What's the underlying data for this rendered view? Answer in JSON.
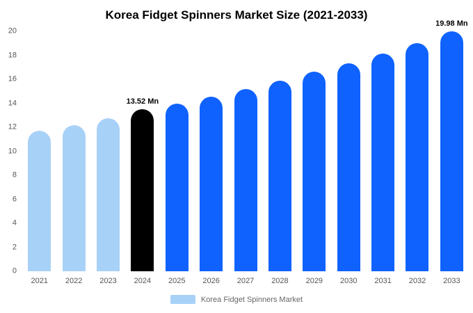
{
  "title": "Korea Fidget Spinners Market Size (2021-2033)",
  "legend": {
    "label": "Korea Fidget Spinners Market",
    "swatch_color": "#a8d1f7"
  },
  "colors": {
    "past": "#a8d1f7",
    "current": "#000000",
    "forecast": "#0f62fe"
  },
  "chart_data": {
    "type": "bar",
    "title": "Korea Fidget Spinners Market Size (2021-2033)",
    "categories": [
      "2021",
      "2022",
      "2023",
      "2024",
      "2025",
      "2026",
      "2027",
      "2028",
      "2029",
      "2030",
      "2031",
      "2032",
      "2033"
    ],
    "values": [
      11.7,
      12.2,
      12.75,
      13.52,
      14.0,
      14.55,
      15.2,
      15.9,
      16.65,
      17.35,
      18.15,
      19.0,
      19.98
    ],
    "bar_colors": [
      "past",
      "past",
      "past",
      "current",
      "forecast",
      "forecast",
      "forecast",
      "forecast",
      "forecast",
      "forecast",
      "forecast",
      "forecast",
      "forecast"
    ],
    "annotations": [
      {
        "index": 3,
        "text": "13.52 Mn"
      },
      {
        "index": 12,
        "text": "19.98 Mn"
      }
    ],
    "xlabel": "",
    "ylabel": "",
    "ylim": [
      0,
      20
    ],
    "yticks": [
      0,
      2,
      4,
      6,
      8,
      10,
      12,
      14,
      16,
      18,
      20
    ],
    "grid": false,
    "legend_position": "bottom",
    "unit": "Mn"
  }
}
